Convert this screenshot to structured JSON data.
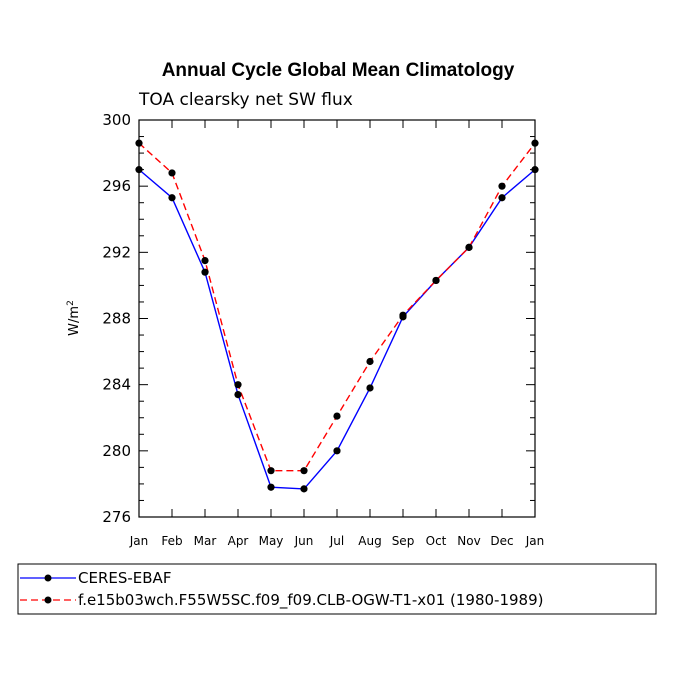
{
  "chart_data": {
    "type": "line",
    "title": "Annual Cycle Global Mean Climatology",
    "subtitle": "TOA clearsky net SW flux",
    "xlabel": "",
    "ylabel": "W/m",
    "ylabel_superscript": "2",
    "categories": [
      "Jan",
      "Feb",
      "Mar",
      "Apr",
      "May",
      "Jun",
      "Jul",
      "Aug",
      "Sep",
      "Oct",
      "Nov",
      "Dec",
      "Jan"
    ],
    "ylim": [
      276,
      300
    ],
    "yticks": [
      276,
      280,
      284,
      288,
      292,
      296,
      300
    ],
    "yminor_step": 1,
    "series": [
      {
        "name": "CERES-EBAF",
        "color": "#0000ff",
        "dash": "solid",
        "values": [
          297.0,
          295.3,
          290.8,
          283.4,
          277.8,
          277.7,
          280.0,
          283.8,
          288.1,
          290.3,
          292.3,
          295.3,
          297.0
        ]
      },
      {
        "name": "f.e15b03wch.F55W5SC.f09_f09.CLB-OGW-T1-x01 (1980-1989)",
        "color": "#ff0000",
        "dash": "dashed",
        "values": [
          298.6,
          296.8,
          291.5,
          284.0,
          278.8,
          278.8,
          282.1,
          285.4,
          288.2,
          290.3,
          292.3,
          296.0,
          298.6
        ]
      }
    ]
  }
}
